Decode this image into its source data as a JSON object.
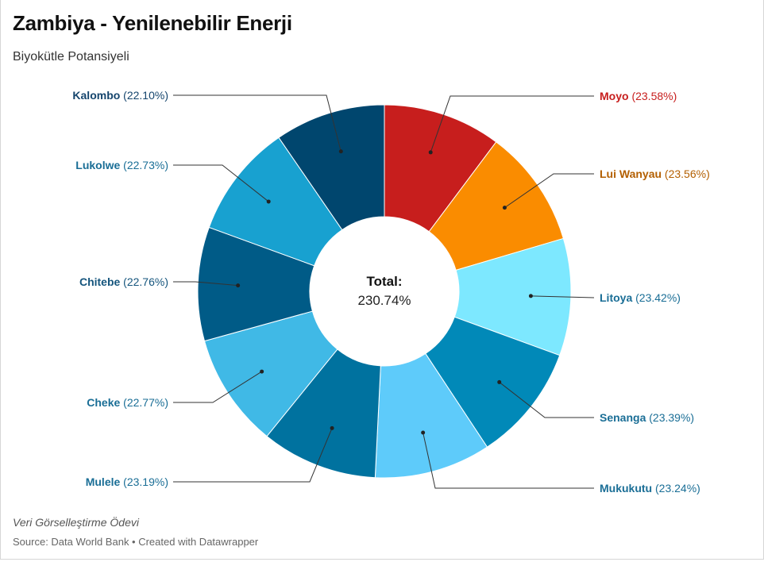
{
  "header": {
    "title": "Zambiya - Yenilenebilir Enerji",
    "subtitle": "Biyokütle Potansiyeli"
  },
  "footer": {
    "notes": "Veri Görselleştirme Ödevi",
    "source": "Source: Data World Bank • Created with Datawrapper"
  },
  "chart_data": {
    "type": "pie",
    "variant": "donut",
    "center_label": "Total:",
    "center_value": "230.74%",
    "slices": [
      {
        "name": "Moyo",
        "value": 23.58,
        "label": "(23.58%)",
        "color": "#c71e1d",
        "label_color": "#c71e1d",
        "side": "right"
      },
      {
        "name": "Lui Wanyau",
        "value": 23.56,
        "label": "(23.56%)",
        "color": "#fa8c00",
        "label_color": "#b35f00",
        "side": "right"
      },
      {
        "name": "Litoya",
        "value": 23.42,
        "label": "(23.42%)",
        "color": "#7de8ff",
        "label_color": "#1a6e96",
        "side": "right"
      },
      {
        "name": "Senanga",
        "value": 23.39,
        "label": "(23.39%)",
        "color": "#0189b8",
        "label_color": "#1a6e96",
        "side": "right"
      },
      {
        "name": "Mukukutu",
        "value": 23.24,
        "label": "(23.24%)",
        "color": "#5ecbfa",
        "label_color": "#1a6e96",
        "side": "right"
      },
      {
        "name": "Mulele",
        "value": 23.19,
        "label": "(23.19%)",
        "color": "#00729f",
        "label_color": "#1a6e96",
        "side": "left"
      },
      {
        "name": "Cheke",
        "value": 22.77,
        "label": "(22.77%)",
        "color": "#40b9e6",
        "label_color": "#1a6e96",
        "side": "left"
      },
      {
        "name": "Chitebe",
        "value": 22.76,
        "label": "(22.76%)",
        "color": "#005b87",
        "label_color": "#15557d",
        "side": "left"
      },
      {
        "name": "Lukolwe",
        "value": 22.73,
        "label": "(22.73%)",
        "color": "#18a1d0",
        "label_color": "#1a6e96",
        "side": "left"
      },
      {
        "name": "Kalombo",
        "value": 22.1,
        "label": "(22.10%)",
        "color": "#00466e",
        "label_color": "#15456d",
        "side": "left"
      }
    ]
  }
}
